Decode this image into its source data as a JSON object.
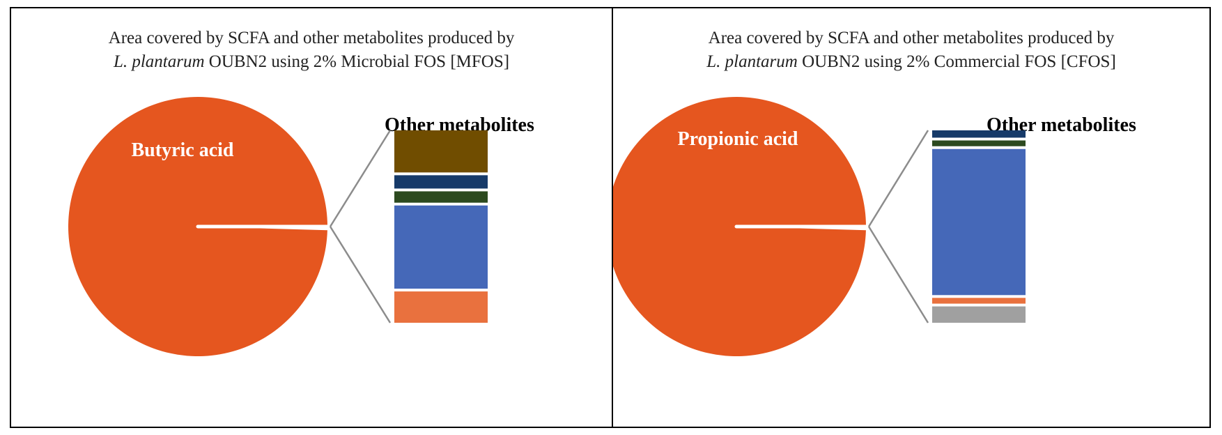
{
  "chart_data": [
    {
      "type": "pie",
      "title_line1": "Area covered by SCFA and other metabolites produced by",
      "title_italic": "L. plantarum",
      "title_line2_rest": " OUBN2 using 2% Microbial FOS [MFOS]",
      "pie_label": "Butyric acid",
      "breakout_label": "Other metabolites",
      "colors": {
        "pie": "#E5561F",
        "connector": "#8C8C8C"
      },
      "main_slice": {
        "label": "Butyric acid",
        "value": 0.995
      },
      "stack": [
        {
          "value": 0.215,
          "color": "#704D00"
        },
        {
          "value": 0.068,
          "color": "#163A69"
        },
        {
          "value": 0.058,
          "color": "#2C4A1F"
        },
        {
          "value": 0.425,
          "color": "#4568B8"
        },
        {
          "value": 0.16,
          "color": "#E9713E"
        }
      ]
    },
    {
      "type": "pie",
      "title_line1": "Area covered by SCFA  and other metabolites produced by",
      "title_italic": "L. plantarum",
      "title_line2_rest": " OUBN2 using 2% Commercial FOS [CFOS]",
      "pie_label": "Propionic acid",
      "breakout_label": "Other metabolites",
      "colors": {
        "pie": "#E5561F",
        "connector": "#8C8C8C"
      },
      "main_slice": {
        "label": "Propionic acid",
        "value": 0.995
      },
      "stack": [
        {
          "value": 0.038,
          "color": "#163A69"
        },
        {
          "value": 0.03,
          "color": "#2C4A1F"
        },
        {
          "value": 0.76,
          "color": "#4568B8"
        },
        {
          "value": 0.03,
          "color": "#E9713E"
        },
        {
          "value": 0.085,
          "color": "#A0A0A0"
        }
      ]
    }
  ]
}
